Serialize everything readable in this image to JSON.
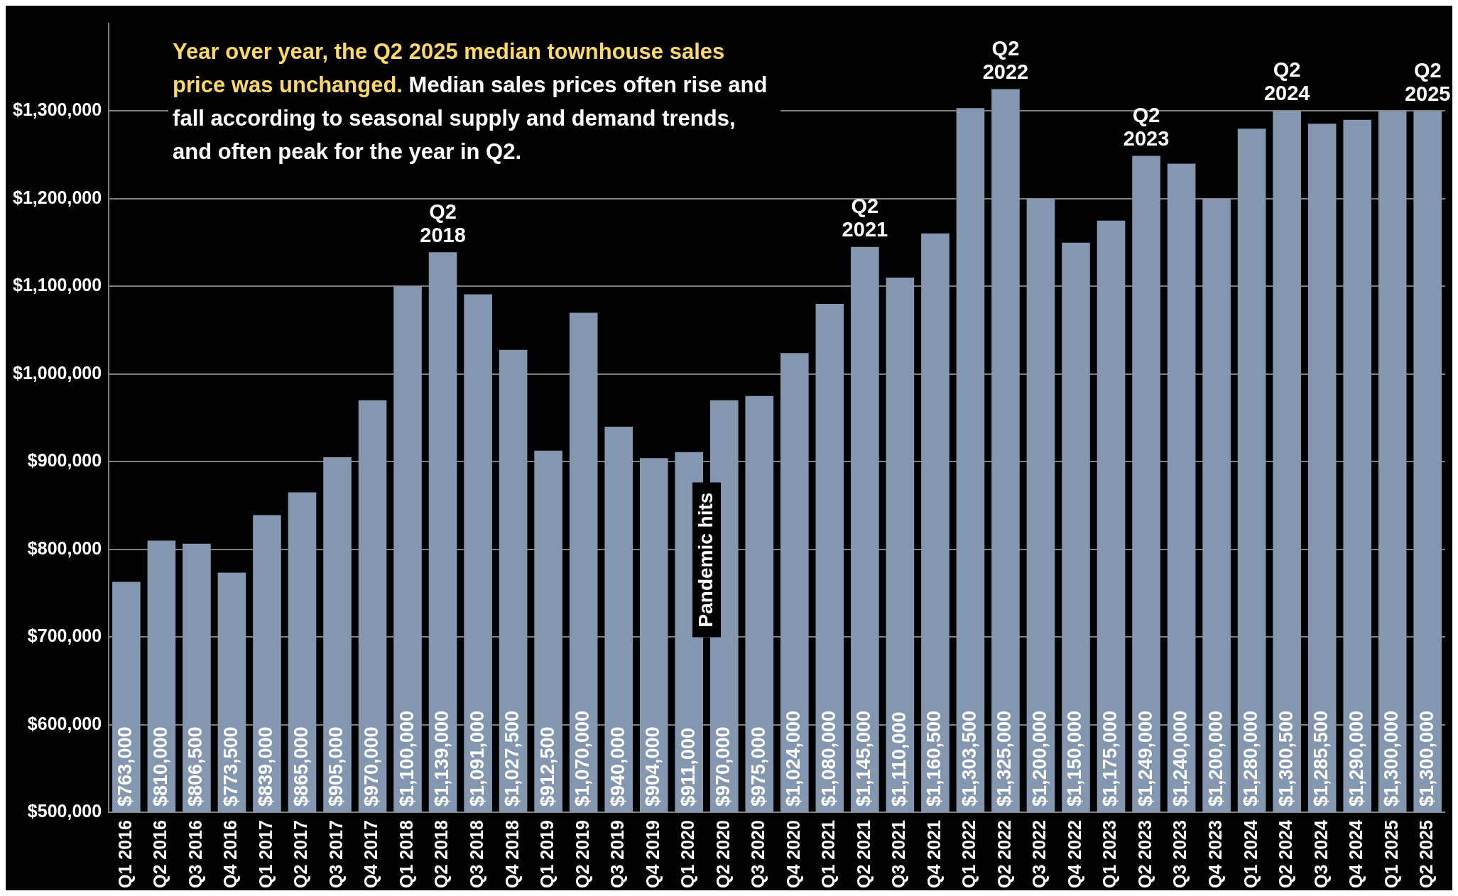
{
  "chart_data": {
    "type": "bar",
    "title": "Year over year, the Q2 2025 median townhouse sales price was unchanged.",
    "subtitle": "Median sales prices often rise and fall according to seasonal supply and demand trends, and often peak for the year in Q2.",
    "categories": [
      "Q1 2016",
      "Q2 2016",
      "Q3 2016",
      "Q4 2016",
      "Q1 2017",
      "Q2 2017",
      "Q3 2017",
      "Q4 2017",
      "Q1 2018",
      "Q2 2018",
      "Q3 2018",
      "Q4 2018",
      "Q1 2019",
      "Q2 2019",
      "Q3 2019",
      "Q4 2019",
      "Q1 2020",
      "Q2 2020",
      "Q3 2020",
      "Q4 2020",
      "Q1 2021",
      "Q2 2021",
      "Q3 2021",
      "Q4 2021",
      "Q1 2022",
      "Q2 2022",
      "Q3 2022",
      "Q4 2022",
      "Q1 2023",
      "Q2 2023",
      "Q3 2023",
      "Q4 2023",
      "Q1 2024",
      "Q2 2024",
      "Q3 2024",
      "Q4 2024",
      "Q1 2025",
      "Q2 2025"
    ],
    "values": [
      763000,
      810000,
      806500,
      773500,
      839000,
      865000,
      905000,
      970000,
      1100000,
      1139000,
      1091000,
      1027500,
      912500,
      1070000,
      940000,
      904000,
      911000,
      970000,
      975000,
      1024000,
      1080000,
      1145000,
      1110000,
      1160500,
      1303500,
      1325000,
      1200000,
      1150000,
      1175000,
      1249000,
      1240000,
      1200000,
      1280000,
      1300500,
      1285500,
      1290000,
      1300000,
      1300000
    ],
    "value_labels": [
      "$763,000",
      "$810,000",
      "$806,500",
      "$773,500",
      "$839,000",
      "$865,000",
      "$905,000",
      "$970,000",
      "$1,100,000",
      "$1,139,000",
      "$1,091,000",
      "$1,027,500",
      "$912,500",
      "$1,070,000",
      "$940,000",
      "$904,000",
      "$911,000",
      "$970,000",
      "$975,000",
      "$1,024,000",
      "$1,080,000",
      "$1,145,000",
      "$1,110,000",
      "$1,160,500",
      "$1,303,500",
      "$1,325,000",
      "$1,200,000",
      "$1,150,000",
      "$1,175,000",
      "$1,249,000",
      "$1,240,000",
      "$1,200,000",
      "$1,280,000",
      "$1,300,500",
      "$1,285,500",
      "$1,290,000",
      "$1,300,000",
      "$1,300,000"
    ],
    "color": "#8497b0",
    "ylim": [
      500000,
      1400000
    ],
    "yticks": [
      {
        "value": 500000,
        "label": "$500,000"
      },
      {
        "value": 600000,
        "label": "$600,000"
      },
      {
        "value": 700000,
        "label": "$700,000"
      },
      {
        "value": 800000,
        "label": "$800,000"
      },
      {
        "value": 900000,
        "label": "$900,000"
      },
      {
        "value": 1000000,
        "label": "$1,000,000"
      },
      {
        "value": 1100000,
        "label": "$1,100,000"
      },
      {
        "value": 1200000,
        "label": "$1,200,000"
      },
      {
        "value": 1300000,
        "label": "$1,300,000"
      }
    ],
    "grid": "y",
    "legend": false,
    "annotations": [
      {
        "text": "Q2 2018",
        "x": "Q2 2018",
        "y": 1139000
      },
      {
        "text": "Q2 2021",
        "x": "Q2 2021",
        "y": 1145000
      },
      {
        "text": "Q2 2022",
        "x": "Q2 2022",
        "y": 1325000
      },
      {
        "text": "Q2 2023",
        "x": "Q2 2023",
        "y": 1249000
      },
      {
        "text": "Q2 2024",
        "x": "Q2 2024",
        "y": 1300500
      },
      {
        "text": "Q2 2025",
        "x": "Q2 2025",
        "y": 1300000
      },
      "Pandemic hits"
    ]
  }
}
